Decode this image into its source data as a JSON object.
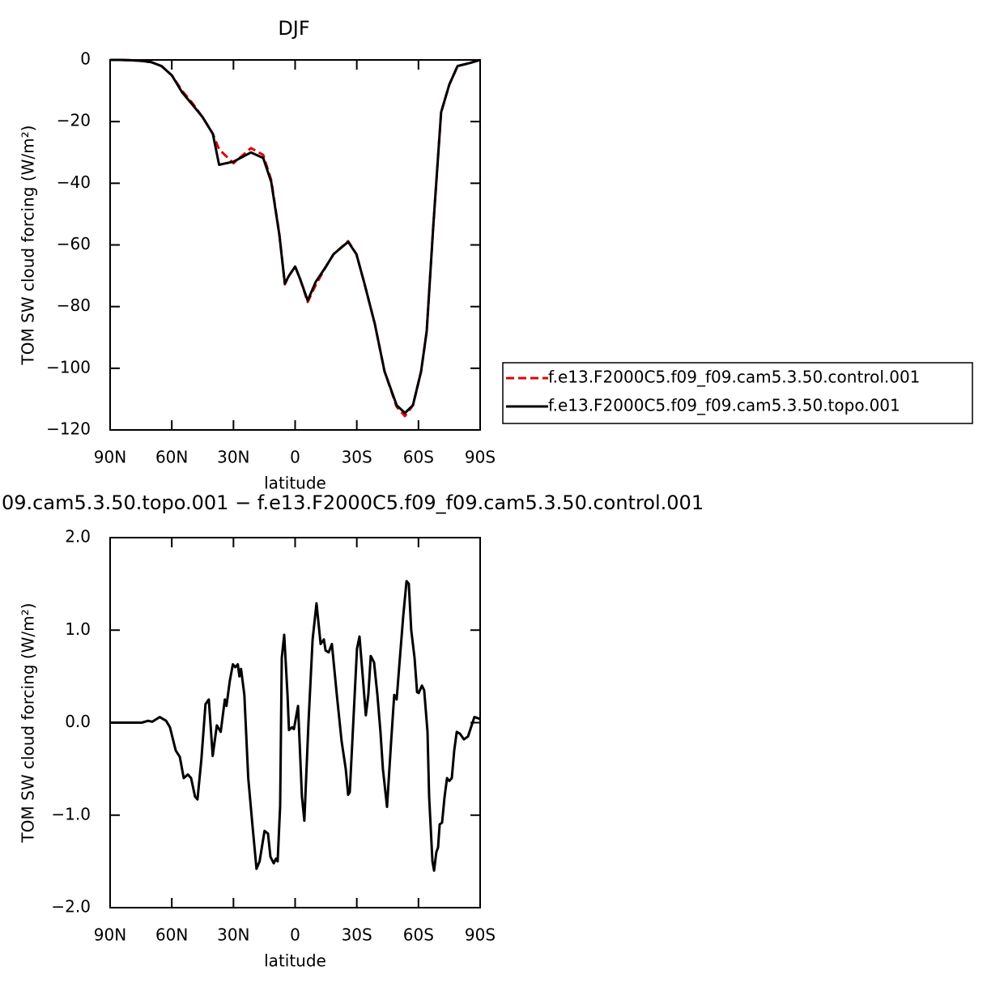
{
  "chart_data": [
    {
      "type": "line",
      "title": "DJF",
      "xlabel": "latitude",
      "ylabel": "TOM SW cloud forcing (W/m²)",
      "x": [
        90,
        85,
        80,
        75,
        70,
        65,
        60,
        55,
        50,
        45,
        40,
        37,
        30,
        21.5,
        15.5,
        11.6,
        7.7,
        5,
        3,
        0,
        -2.4,
        -6.1,
        -10,
        -15,
        -18.7,
        -25.8,
        -29.8,
        -33.7,
        -38.8,
        -43.5,
        -49.4,
        -53.4,
        -57.3,
        -61.3,
        -64,
        -67.2,
        -71,
        -75,
        -79,
        -85,
        -90
      ],
      "series": [
        {
          "name": "f.e13.F2000C5.f09_f09.cam5.3.50.control.001",
          "color": "#e00000",
          "dash": true,
          "values": [
            0,
            0,
            -0.1,
            -0.3,
            -0.7,
            -2,
            -5,
            -10,
            -14,
            -18.6,
            -24,
            -29,
            -33.5,
            -28.6,
            -30.8,
            -39,
            -56.5,
            -72.8,
            -70,
            -67,
            -71,
            -78.5,
            -73,
            -67,
            -63,
            -58.8,
            -63,
            -72.5,
            -85.7,
            -101,
            -112.5,
            -115.5,
            -112,
            -101,
            -88,
            -54,
            -17,
            -8,
            -2,
            -1,
            0
          ]
        },
        {
          "name": "f.e13.F2000C5.f09_f09.cam5.3.50.topo.001",
          "color": "#000000",
          "dash": false,
          "values": [
            0,
            0,
            -0.1,
            -0.3,
            -0.7,
            -2,
            -5,
            -10.5,
            -14.5,
            -18.6,
            -24,
            -34,
            -33,
            -30,
            -31.8,
            -39.6,
            -56.7,
            -72.5,
            -70,
            -67,
            -71,
            -78,
            -72,
            -67,
            -63,
            -59,
            -63,
            -72.5,
            -85.7,
            -101,
            -112,
            -114.5,
            -112,
            -101,
            -88,
            -54,
            -17,
            -8,
            -2,
            -1,
            0
          ]
        }
      ],
      "xlim": [
        90,
        -90
      ],
      "xticks": [
        {
          "value": 90,
          "label": "90N"
        },
        {
          "value": 60,
          "label": "60N"
        },
        {
          "value": 30,
          "label": "30N"
        },
        0,
        {
          "value": -30,
          "label": "30S"
        },
        {
          "value": -60,
          "label": "60S"
        },
        {
          "value": -90,
          "label": "90S"
        }
      ],
      "ylim": [
        -120,
        0
      ],
      "yticks": [
        0,
        {
          "value": -20,
          "label": "−20"
        },
        {
          "value": -40,
          "label": "−40"
        },
        {
          "value": -60,
          "label": "−60"
        },
        {
          "value": -80,
          "label": "−80"
        },
        {
          "value": -100,
          "label": "−100"
        },
        {
          "value": -120,
          "label": "−120"
        }
      ],
      "legend": "right"
    },
    {
      "type": "line",
      "title": "09.cam5.3.50.topo.001 − f.e13.F2000C5.f09_f09.cam5.3.50.control.001",
      "xlabel": "latitude",
      "ylabel": "TOM SW cloud forcing (W/m²)",
      "x": [
        90,
        74.6,
        71.5,
        69.5,
        65.9,
        62.8,
        60.9,
        58.1,
        56.1,
        54.2,
        52.2,
        50.6,
        48.7,
        47.5,
        45.6,
        43.6,
        42.0,
        40.1,
        38.1,
        36.2,
        34.2,
        33.4,
        31.8,
        30.3,
        29.1,
        27.9,
        27.1,
        26.3,
        24.7,
        22.8,
        20.8,
        18.8,
        17.3,
        14.9,
        13.2,
        12.0,
        10.4,
        9.3,
        8.5,
        7.3,
        6.5,
        5.3,
        3.7,
        3.0,
        1.4,
        0.6,
        -1.4,
        -3.3,
        -4.5,
        -6.5,
        -8.5,
        -10.4,
        -12.4,
        -14.0,
        -14.8,
        -16.3,
        -17.9,
        -20.3,
        -22.6,
        -24.6,
        -25.8,
        -26.6,
        -28.5,
        -30.1,
        -31.3,
        -32.9,
        -34.4,
        -35.6,
        -36.8,
        -38.4,
        -40.0,
        -41.5,
        -42.7,
        -44.7,
        -46.7,
        -48.2,
        -49.4,
        -50.6,
        -52.6,
        -54.2,
        -55.3,
        -56.5,
        -58.1,
        -59.3,
        -60.1,
        -61.7,
        -62.8,
        -64.4,
        -65.2,
        -66.8,
        -67.6,
        -68.7,
        -69.5,
        -70.3,
        -71.5,
        -72.7,
        -73.9,
        -75.0,
        -76.2,
        -77.4,
        -78.6,
        -80.2,
        -82.1,
        -84.1,
        -87.2,
        -90
      ],
      "series": [
        {
          "color": "#000000",
          "dash": false,
          "values": [
            0,
            0,
            0.02,
            0.01,
            0.06,
            0.02,
            -0.05,
            -0.3,
            -0.37,
            -0.6,
            -0.56,
            -0.6,
            -0.8,
            -0.83,
            -0.4,
            0.2,
            0.25,
            -0.36,
            -0.03,
            -0.1,
            0.25,
            0.18,
            0.45,
            0.63,
            0.6,
            0.63,
            0.5,
            0.58,
            0.3,
            -0.6,
            -1.1,
            -1.58,
            -1.5,
            -1.17,
            -1.2,
            -1.45,
            -1.52,
            -1.47,
            -1.5,
            -0.9,
            0.7,
            0.95,
            0.3,
            -0.08,
            -0.05,
            -0.07,
            0.18,
            -0.8,
            -1.06,
            0,
            0.9,
            1.29,
            0.85,
            0.9,
            0.78,
            0.76,
            0.85,
            0.3,
            -0.2,
            -0.5,
            -0.78,
            -0.75,
            0.1,
            0.8,
            0.93,
            0.5,
            0.08,
            0.3,
            0.72,
            0.65,
            0.3,
            -0.1,
            -0.5,
            -0.91,
            -0.2,
            0.3,
            0.25,
            0.6,
            1.15,
            1.53,
            1.5,
            1.0,
            0.7,
            0.33,
            0.32,
            0.4,
            0.35,
            -0.1,
            -0.8,
            -1.5,
            -1.6,
            -1.4,
            -1.35,
            -1.1,
            -1.08,
            -0.8,
            -0.6,
            -0.63,
            -0.6,
            -0.3,
            -0.1,
            -0.12,
            -0.18,
            -0.15,
            0.06,
            0.04
          ]
        }
      ],
      "xlim": [
        90,
        -90
      ],
      "xticks": [
        {
          "value": 90,
          "label": "90N"
        },
        {
          "value": 60,
          "label": "60N"
        },
        {
          "value": 30,
          "label": "30N"
        },
        0,
        {
          "value": -30,
          "label": "30S"
        },
        {
          "value": -60,
          "label": "60S"
        },
        {
          "value": -90,
          "label": "90S"
        }
      ],
      "ylim": [
        -2,
        2
      ],
      "yticks": [
        {
          "value": 2,
          "label": "2.0"
        },
        {
          "value": 1,
          "label": "1.0"
        },
        {
          "value": 0,
          "label": "0.0"
        },
        {
          "value": -1,
          "label": "−1.0"
        },
        {
          "value": -2,
          "label": "−2.0"
        }
      ]
    }
  ]
}
